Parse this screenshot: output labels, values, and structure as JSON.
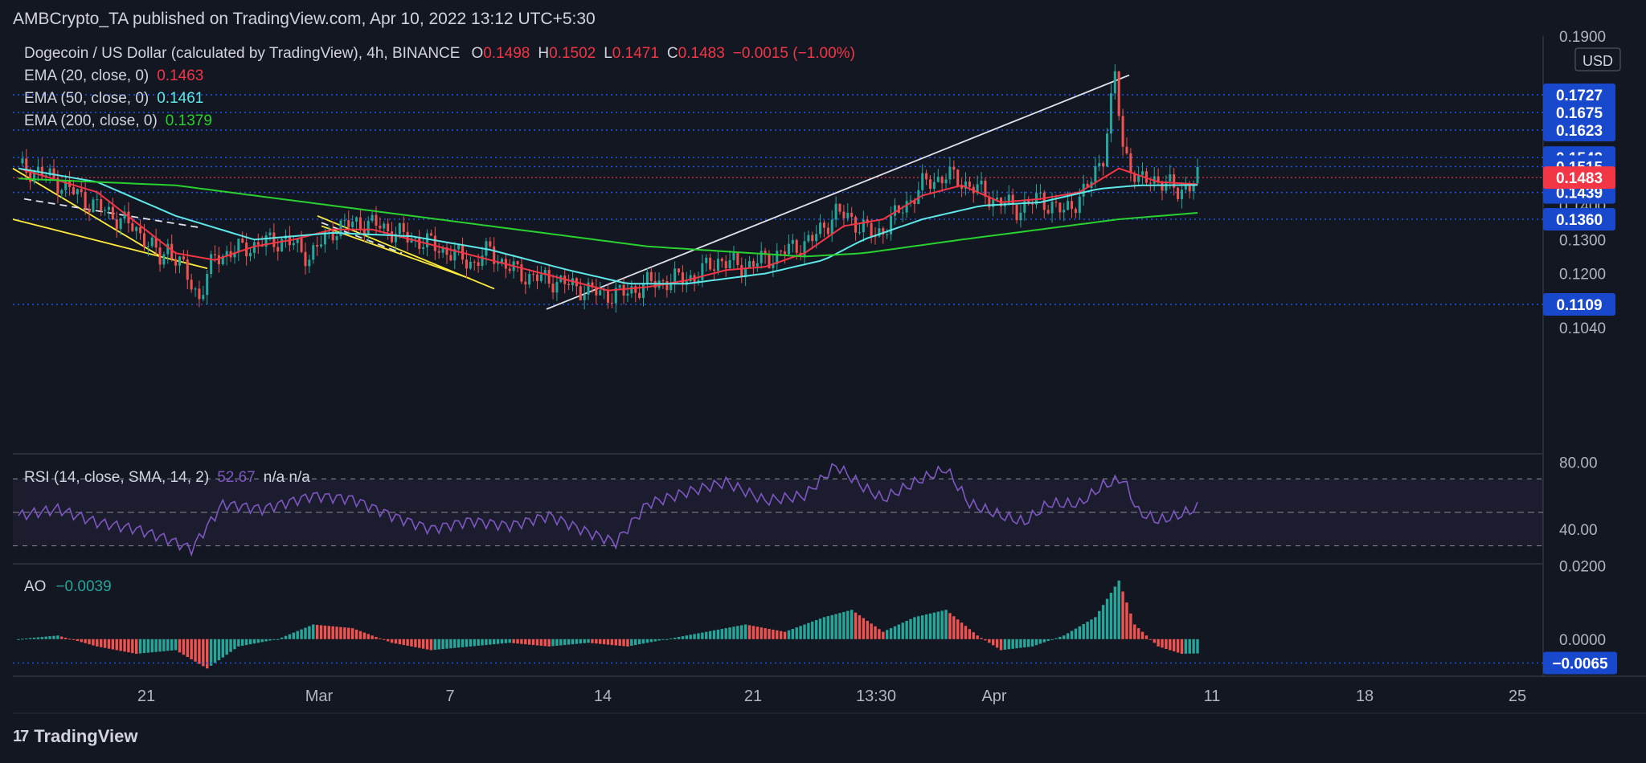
{
  "header": {
    "published": "AMBCrypto_TA published on TradingView.com, Apr 10, 2022 13:12 UTC+5:30"
  },
  "footer": {
    "brand": "TradingView"
  },
  "colors": {
    "background": "#131722",
    "up": "#26a69a",
    "down": "#ef5350",
    "ema20": "#f23645",
    "ema50": "#5ee8e8",
    "ema200": "#29d12f",
    "rsi": "#7e57c2",
    "level": "#1e53e5",
    "badge": "#1848cc",
    "price_badge": "#f23645",
    "trendline": "#ffeb3b"
  },
  "main": {
    "symbol_prefix": "Dogecoin / US Dollar (calculated by TradingView), 4h, BINANCE",
    "ohlc": [
      {
        "k": "O",
        "v": "0.1498"
      },
      {
        "k": "H",
        "v": "0.1502"
      },
      {
        "k": "L",
        "v": "0.1471"
      },
      {
        "k": "C",
        "v": "0.1483"
      }
    ],
    "change": "−0.0015 (−1.00%)",
    "emas": [
      {
        "label": "EMA (20, close, 0)",
        "value": "0.1463",
        "color": "#f23645"
      },
      {
        "label": "EMA (50, close, 0)",
        "value": "0.1461",
        "color": "#5ee8e8"
      },
      {
        "label": "EMA (200, close, 0)",
        "value": "0.1379",
        "color": "#29d12f"
      }
    ],
    "currency": "USD",
    "axis_ticks": [
      "0.1900",
      "0.1400",
      "0.1300",
      "0.1200",
      "0.1040"
    ],
    "level_badges": [
      "0.1727",
      "0.1675",
      "0.1623",
      "0.1542",
      "0.1515",
      "0.1439",
      "0.1360",
      "0.1109"
    ],
    "last_price": "0.1483"
  },
  "rsi": {
    "label": "RSI (14, close, SMA, 14, 2)",
    "value": "52.67",
    "na": "n/a  n/a",
    "ticks": [
      "80.00",
      "40.00"
    ]
  },
  "ao": {
    "label": "AO",
    "value": "−0.0039",
    "ticks": [
      "0.0200",
      "0.0000"
    ],
    "badge": "−0.0065"
  },
  "xaxis": {
    "labels": [
      "21",
      "Mar",
      "7",
      "14",
      "21",
      "13:30",
      "Apr",
      "11",
      "18",
      "25"
    ]
  },
  "chart_data": [
    {
      "type": "line",
      "title": "Dogecoin / US Dollar (calculated by TradingView), 4h, BINANCE",
      "x_labels": [
        "21",
        "Mar",
        "7",
        "14",
        "21",
        "13:30",
        "Apr",
        "11",
        "18",
        "25"
      ],
      "ylim": [
        0.1,
        0.19
      ],
      "ticks": [
        0.19,
        0.14,
        0.13,
        0.12,
        0.104
      ],
      "horizontal_levels": [
        0.1727,
        0.1675,
        0.1623,
        0.1542,
        0.1515,
        0.1439,
        0.136,
        0.1109
      ],
      "last_close": 0.1483,
      "price_anchors": [
        [
          0,
          0.151
        ],
        [
          5,
          0.15
        ],
        [
          10,
          0.147
        ],
        [
          18,
          0.141
        ],
        [
          26,
          0.136
        ],
        [
          32,
          0.131
        ],
        [
          36,
          0.124
        ],
        [
          38,
          0.128
        ],
        [
          42,
          0.121
        ],
        [
          46,
          0.113
        ],
        [
          50,
          0.125
        ],
        [
          56,
          0.127
        ],
        [
          62,
          0.129
        ],
        [
          68,
          0.13
        ],
        [
          74,
          0.125
        ],
        [
          80,
          0.133
        ],
        [
          86,
          0.135
        ],
        [
          92,
          0.134
        ],
        [
          98,
          0.131
        ],
        [
          104,
          0.129
        ],
        [
          110,
          0.126
        ],
        [
          116,
          0.123
        ],
        [
          120,
          0.127
        ],
        [
          124,
          0.122
        ],
        [
          130,
          0.119
        ],
        [
          136,
          0.118
        ],
        [
          142,
          0.116
        ],
        [
          148,
          0.114
        ],
        [
          154,
          0.114
        ],
        [
          160,
          0.117
        ],
        [
          166,
          0.118
        ],
        [
          172,
          0.119
        ],
        [
          178,
          0.124
        ],
        [
          184,
          0.122
        ],
        [
          190,
          0.124
        ],
        [
          196,
          0.127
        ],
        [
          202,
          0.13
        ],
        [
          208,
          0.138
        ],
        [
          212,
          0.136
        ],
        [
          218,
          0.131
        ],
        [
          224,
          0.138
        ],
        [
          230,
          0.146
        ],
        [
          236,
          0.149
        ],
        [
          242,
          0.146
        ],
        [
          248,
          0.142
        ],
        [
          254,
          0.139
        ],
        [
          260,
          0.142
        ],
        [
          266,
          0.138
        ],
        [
          272,
          0.145
        ],
        [
          276,
          0.155
        ],
        [
          279,
          0.178
        ],
        [
          281,
          0.157
        ],
        [
          285,
          0.147
        ],
        [
          290,
          0.148
        ],
        [
          295,
          0.144
        ],
        [
          300,
          0.148
        ]
      ],
      "series": [
        {
          "name": "EMA (20, close, 0)",
          "anchors": [
            [
              0,
              0.151
            ],
            [
              20,
              0.144
            ],
            [
              30,
              0.135
            ],
            [
              40,
              0.126
            ],
            [
              50,
              0.124
            ],
            [
              60,
              0.128
            ],
            [
              70,
              0.13
            ],
            [
              80,
              0.133
            ],
            [
              90,
              0.133
            ],
            [
              100,
              0.13
            ],
            [
              110,
              0.127
            ],
            [
              120,
              0.124
            ],
            [
              130,
              0.121
            ],
            [
              140,
              0.118
            ],
            [
              150,
              0.115
            ],
            [
              160,
              0.116
            ],
            [
              170,
              0.118
            ],
            [
              180,
              0.121
            ],
            [
              190,
              0.122
            ],
            [
              200,
              0.126
            ],
            [
              210,
              0.134
            ],
            [
              220,
              0.136
            ],
            [
              230,
              0.143
            ],
            [
              240,
              0.146
            ],
            [
              250,
              0.141
            ],
            [
              260,
              0.142
            ],
            [
              270,
              0.144
            ],
            [
              280,
              0.151
            ],
            [
              290,
              0.147
            ],
            [
              300,
              0.1463
            ]
          ]
        },
        {
          "name": "EMA (50, close, 0)",
          "anchors": [
            [
              0,
              0.151
            ],
            [
              20,
              0.147
            ],
            [
              40,
              0.137
            ],
            [
              60,
              0.13
            ],
            [
              80,
              0.132
            ],
            [
              100,
              0.131
            ],
            [
              120,
              0.127
            ],
            [
              140,
              0.121
            ],
            [
              155,
              0.117
            ],
            [
              170,
              0.117
            ],
            [
              190,
              0.12
            ],
            [
              205,
              0.124
            ],
            [
              215,
              0.13
            ],
            [
              230,
              0.136
            ],
            [
              245,
              0.14
            ],
            [
              260,
              0.141
            ],
            [
              275,
              0.145
            ],
            [
              285,
              0.146
            ],
            [
              300,
              0.1461
            ]
          ]
        },
        {
          "name": "EMA (200, close, 0)",
          "anchors": [
            [
              0,
              0.148
            ],
            [
              40,
              0.146
            ],
            [
              80,
              0.14
            ],
            [
              120,
              0.134
            ],
            [
              160,
              0.128
            ],
            [
              200,
              0.125
            ],
            [
              215,
              0.126
            ],
            [
              240,
              0.13
            ],
            [
              260,
              0.133
            ],
            [
              280,
              0.136
            ],
            [
              300,
              0.1379
            ]
          ]
        }
      ]
    },
    {
      "type": "line",
      "title": "RSI (14, close, SMA, 14, 2)",
      "ylim": [
        25,
        85
      ],
      "ticks": [
        80,
        40
      ],
      "bands": [
        70,
        50,
        30
      ],
      "anchors": [
        [
          0,
          48
        ],
        [
          10,
          52
        ],
        [
          20,
          44
        ],
        [
          30,
          40
        ],
        [
          38,
          34
        ],
        [
          44,
          28
        ],
        [
          52,
          55
        ],
        [
          62,
          52
        ],
        [
          75,
          60
        ],
        [
          85,
          58
        ],
        [
          95,
          48
        ],
        [
          105,
          40
        ],
        [
          115,
          45
        ],
        [
          125,
          42
        ],
        [
          135,
          48
        ],
        [
          145,
          38
        ],
        [
          152,
          32
        ],
        [
          160,
          55
        ],
        [
          170,
          62
        ],
        [
          180,
          68
        ],
        [
          190,
          57
        ],
        [
          200,
          60
        ],
        [
          208,
          78
        ],
        [
          215,
          65
        ],
        [
          220,
          58
        ],
        [
          230,
          70
        ],
        [
          236,
          76
        ],
        [
          242,
          55
        ],
        [
          250,
          48
        ],
        [
          256,
          44
        ],
        [
          262,
          55
        ],
        [
          270,
          55
        ],
        [
          276,
          66
        ],
        [
          281,
          70
        ],
        [
          285,
          50
        ],
        [
          290,
          45
        ],
        [
          295,
          48
        ],
        [
          300,
          52.67
        ]
      ]
    },
    {
      "type": "bar",
      "title": "AO",
      "ylim": [
        -0.0075,
        0.021
      ],
      "ticks": [
        0.02,
        0.0
      ],
      "last_value": -0.0039,
      "badge_value": -0.0065,
      "anchors": [
        [
          0,
          0.0
        ],
        [
          10,
          0.001
        ],
        [
          20,
          -0.002
        ],
        [
          30,
          -0.004
        ],
        [
          40,
          -0.003
        ],
        [
          48,
          -0.008
        ],
        [
          56,
          -0.002
        ],
        [
          66,
          0.0
        ],
        [
          75,
          0.004
        ],
        [
          85,
          0.003
        ],
        [
          95,
          -0.001
        ],
        [
          105,
          -0.003
        ],
        [
          115,
          -0.002
        ],
        [
          125,
          -0.001
        ],
        [
          135,
          -0.002
        ],
        [
          145,
          -0.001
        ],
        [
          155,
          -0.002
        ],
        [
          165,
          0.0
        ],
        [
          175,
          0.002
        ],
        [
          185,
          0.004
        ],
        [
          195,
          0.002
        ],
        [
          205,
          0.006
        ],
        [
          212,
          0.008
        ],
        [
          220,
          0.002
        ],
        [
          228,
          0.006
        ],
        [
          236,
          0.008
        ],
        [
          244,
          0.001
        ],
        [
          250,
          -0.003
        ],
        [
          258,
          -0.002
        ],
        [
          266,
          0.001
        ],
        [
          274,
          0.006
        ],
        [
          280,
          0.016
        ],
        [
          284,
          0.004
        ],
        [
          290,
          -0.002
        ],
        [
          296,
          -0.004
        ],
        [
          300,
          -0.0039
        ]
      ]
    }
  ]
}
